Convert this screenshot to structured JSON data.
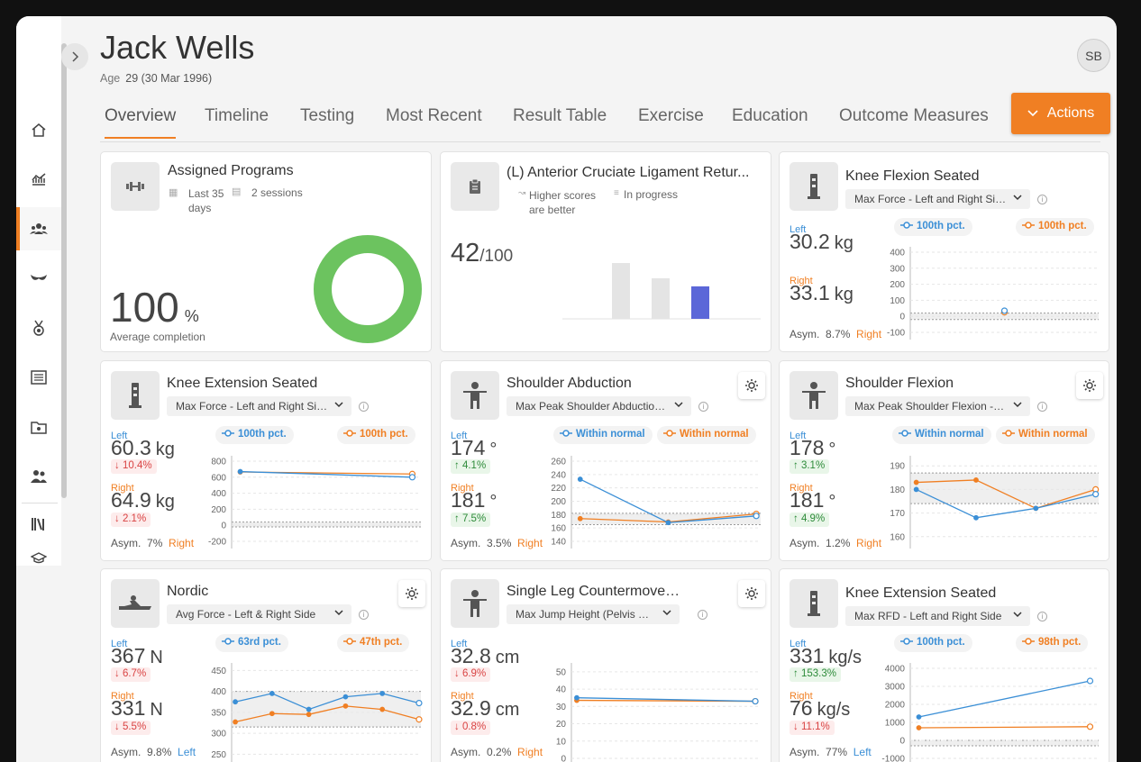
{
  "patient": {
    "name": "Jack Wells",
    "age_label": "Age",
    "age_value": "29 (30 Mar 1996)",
    "initials": "SB"
  },
  "tabs": [
    "Overview",
    "Timeline",
    "Testing",
    "Most Recent",
    "Result Table",
    "Exercise",
    "Education",
    "Outcome Measures"
  ],
  "actions_label": "Actions",
  "sidebar_icons": [
    "home-icon",
    "analytics-icon",
    "group-icon",
    "bra-icon",
    "medal-icon",
    "list-icon",
    "folder-icon",
    "team-icon",
    "library-icon",
    "education-icon"
  ],
  "colors": {
    "accent": "#f07f23",
    "left": "#3b8fd6",
    "right": "#f07f23",
    "donut": "#6cc35f",
    "bar_highlight": "#5b67d8"
  },
  "programs": {
    "title": "Assigned Programs",
    "period": "Last 35 days",
    "sessions": "2 sessions",
    "value": "100",
    "unit": "%",
    "caption": "Average completion",
    "completion": 1.0
  },
  "acl": {
    "title": "(L) Anterior Cruciate Ligament Retur...",
    "note_scores": "Higher scores are better",
    "status": "In progress",
    "score": "42",
    "score_max": "/100",
    "chart_data": {
      "type": "bar",
      "values": [
        55,
        40,
        32
      ],
      "highlight_index": 2
    }
  },
  "cards": [
    {
      "title": "Knee Flexion Seated",
      "metric": "Max Force - Left and Right Side",
      "left_label": "Left",
      "right_label": "Right",
      "left_value": "30.2",
      "left_unit": "kg",
      "left_change": "",
      "left_dir": "",
      "right_value": "33.1",
      "right_unit": "kg",
      "right_change": "",
      "right_dir": "",
      "asym_label": "Asym.",
      "asym_value": "8.7%",
      "asym_side": "Right",
      "asym_side_class": "right",
      "left_pill": "100th pct.",
      "right_pill": "100th pct.",
      "gear": false,
      "icon": "machine-icon",
      "chart_data": {
        "type": "scatter",
        "y_ticks": [
          "400",
          "300",
          "200",
          "100",
          "0",
          "-100"
        ],
        "ylim": [
          -100,
          400
        ],
        "band": [
          -20,
          20
        ],
        "left": [
          [
            1,
            35
          ]
        ],
        "right": [
          [
            1,
            25
          ]
        ],
        "xlim": [
          0,
          2
        ]
      }
    },
    {
      "title": "Knee Extension Seated",
      "metric": "Max Force - Left and Right Side",
      "left_label": "Left",
      "right_label": "Right",
      "left_value": "60.3",
      "left_unit": "kg",
      "left_change": "10.4%",
      "left_dir": "down",
      "right_value": "64.9",
      "right_unit": "kg",
      "right_change": "2.1%",
      "right_dir": "down",
      "asym_label": "Asym.",
      "asym_value": "7%",
      "asym_side": "Right",
      "asym_side_class": "right",
      "left_pill": "100th pct.",
      "right_pill": "100th pct.",
      "gear": false,
      "icon": "machine-icon",
      "chart_data": {
        "type": "line",
        "y_ticks": [
          "800",
          "600",
          "400",
          "200",
          "0",
          "-200"
        ],
        "ylim": [
          -200,
          800
        ],
        "band": [
          -20,
          40
        ],
        "left": [
          [
            0,
            670
          ],
          [
            1,
            600
          ]
        ],
        "right": [
          [
            0,
            665
          ],
          [
            1,
            640
          ]
        ],
        "xlim": [
          -0.05,
          1.05
        ]
      }
    },
    {
      "title": "Shoulder Abduction",
      "metric": "Max Peak Shoulder Abduction...",
      "left_label": "Left",
      "right_label": "Right",
      "left_value": "174",
      "left_unit": "°",
      "left_change": "4.1%",
      "left_dir": "up",
      "right_value": "181",
      "right_unit": "°",
      "right_change": "7.5%",
      "right_dir": "up",
      "asym_label": "Asym.",
      "asym_value": "3.5%",
      "asym_side": "Right",
      "asym_side_class": "right",
      "left_pill": "Within normal",
      "right_pill": "Within normal",
      "gear": true,
      "icon": "person-icon",
      "chart_data": {
        "type": "line",
        "y_ticks": [
          "260",
          "240",
          "220",
          "200",
          "180",
          "160",
          "140"
        ],
        "ylim": [
          140,
          260
        ],
        "band": [
          165,
          182
        ],
        "left": [
          [
            0,
            233
          ],
          [
            1,
            168
          ],
          [
            2,
            178
          ]
        ],
        "right": [
          [
            0,
            174
          ],
          [
            1,
            169
          ],
          [
            2,
            181
          ]
        ],
        "xlim": [
          -0.1,
          2.05
        ]
      }
    },
    {
      "title": "Shoulder Flexion",
      "metric": "Max Peak Shoulder Flexion - L...",
      "left_label": "Left",
      "right_label": "Right",
      "left_value": "178",
      "left_unit": "°",
      "left_change": "3.1%",
      "left_dir": "up",
      "right_value": "181",
      "right_unit": "°",
      "right_change": "4.9%",
      "right_dir": "up",
      "asym_label": "Asym.",
      "asym_value": "1.2%",
      "asym_side": "Right",
      "asym_side_class": "right",
      "left_pill": "Within normal",
      "right_pill": "Within normal",
      "gear": true,
      "icon": "person-icon",
      "chart_data": {
        "type": "line",
        "y_ticks": [
          "190",
          "180",
          "170",
          "160"
        ],
        "ylim": [
          158,
          192
        ],
        "band": [
          174,
          187
        ],
        "left": [
          [
            0,
            180
          ],
          [
            1,
            168
          ],
          [
            2,
            172
          ],
          [
            3,
            178
          ]
        ],
        "right": [
          [
            0,
            183
          ],
          [
            1,
            184
          ],
          [
            2,
            172
          ],
          [
            3,
            180
          ]
        ],
        "xlim": [
          -0.1,
          3.05
        ]
      }
    },
    {
      "title": "Nordic",
      "metric": "Avg Force - Left & Right Side",
      "left_label": "Left",
      "right_label": "Right",
      "left_value": "367",
      "left_unit": "N",
      "left_change": "6.7%",
      "left_dir": "down",
      "right_value": "331",
      "right_unit": "N",
      "right_change": "5.5%",
      "right_dir": "down",
      "asym_label": "Asym.",
      "asym_value": "9.8%",
      "asym_side": "Left",
      "asym_side_class": "left",
      "left_pill": "63rd pct.",
      "right_pill": "47th pct.",
      "gear": true,
      "icon": "nordic-icon",
      "chart_data": {
        "type": "line",
        "y_ticks": [
          "450",
          "400",
          "350",
          "300",
          "250"
        ],
        "ylim": [
          240,
          455
        ],
        "band": [
          315,
          400
        ],
        "left": [
          [
            0,
            375
          ],
          [
            1,
            395
          ],
          [
            2,
            357
          ],
          [
            3,
            387
          ],
          [
            4,
            395
          ],
          [
            5,
            372
          ]
        ],
        "right": [
          [
            0,
            327
          ],
          [
            1,
            347
          ],
          [
            2,
            345
          ],
          [
            3,
            365
          ],
          [
            4,
            357
          ],
          [
            5,
            333
          ]
        ],
        "xlim": [
          -0.1,
          5.05
        ]
      }
    },
    {
      "title": "Single Leg Countermovem...",
      "metric": "Max Jump Height (Pelvis Displ...",
      "left_label": "Left",
      "right_label": "Right",
      "left_value": "32.8",
      "left_unit": "cm",
      "left_change": "6.9%",
      "left_dir": "down",
      "right_value": "32.9",
      "right_unit": "cm",
      "right_change": "0.8%",
      "right_dir": "down",
      "asym_label": "Asym.",
      "asym_value": "0.2%",
      "asym_side": "Right",
      "asym_side_class": "right",
      "left_pill": "",
      "right_pill": "",
      "gear": true,
      "icon": "person-icon",
      "chart_data": {
        "type": "line",
        "y_ticks": [
          "50",
          "40",
          "30",
          "20",
          "10",
          "0"
        ],
        "ylim": [
          0,
          52
        ],
        "band": null,
        "left": [
          [
            0,
            35
          ],
          [
            1,
            33
          ]
        ],
        "right": [
          [
            0,
            33.5
          ],
          [
            1,
            33
          ]
        ],
        "xlim": [
          -0.03,
          1.03
        ]
      }
    },
    {
      "title": "Knee Extension Seated",
      "metric": "Max RFD - Left and Right Side",
      "left_label": "Left",
      "right_label": "Right",
      "left_value": "331",
      "left_unit": "kg/s",
      "left_change": "153.3%",
      "left_dir": "up",
      "right_value": "76",
      "right_unit": "kg/s",
      "right_change": "11.1%",
      "right_dir": "down",
      "asym_label": "Asym.",
      "asym_value": "77%",
      "asym_side": "Left",
      "asym_side_class": "left",
      "left_pill": "100th pct.",
      "right_pill": "98th pct.",
      "gear": false,
      "icon": "machine-icon",
      "chart_data": {
        "type": "line",
        "y_ticks": [
          "4000",
          "3000",
          "2000",
          "1000",
          "0",
          "-1000"
        ],
        "ylim": [
          -1000,
          4000
        ],
        "band": [
          -300,
          0
        ],
        "left": [
          [
            0,
            1300
          ],
          [
            1,
            3300
          ]
        ],
        "right": [
          [
            0,
            700
          ],
          [
            1,
            760
          ]
        ],
        "xlim": [
          -0.05,
          1.05
        ]
      }
    }
  ]
}
